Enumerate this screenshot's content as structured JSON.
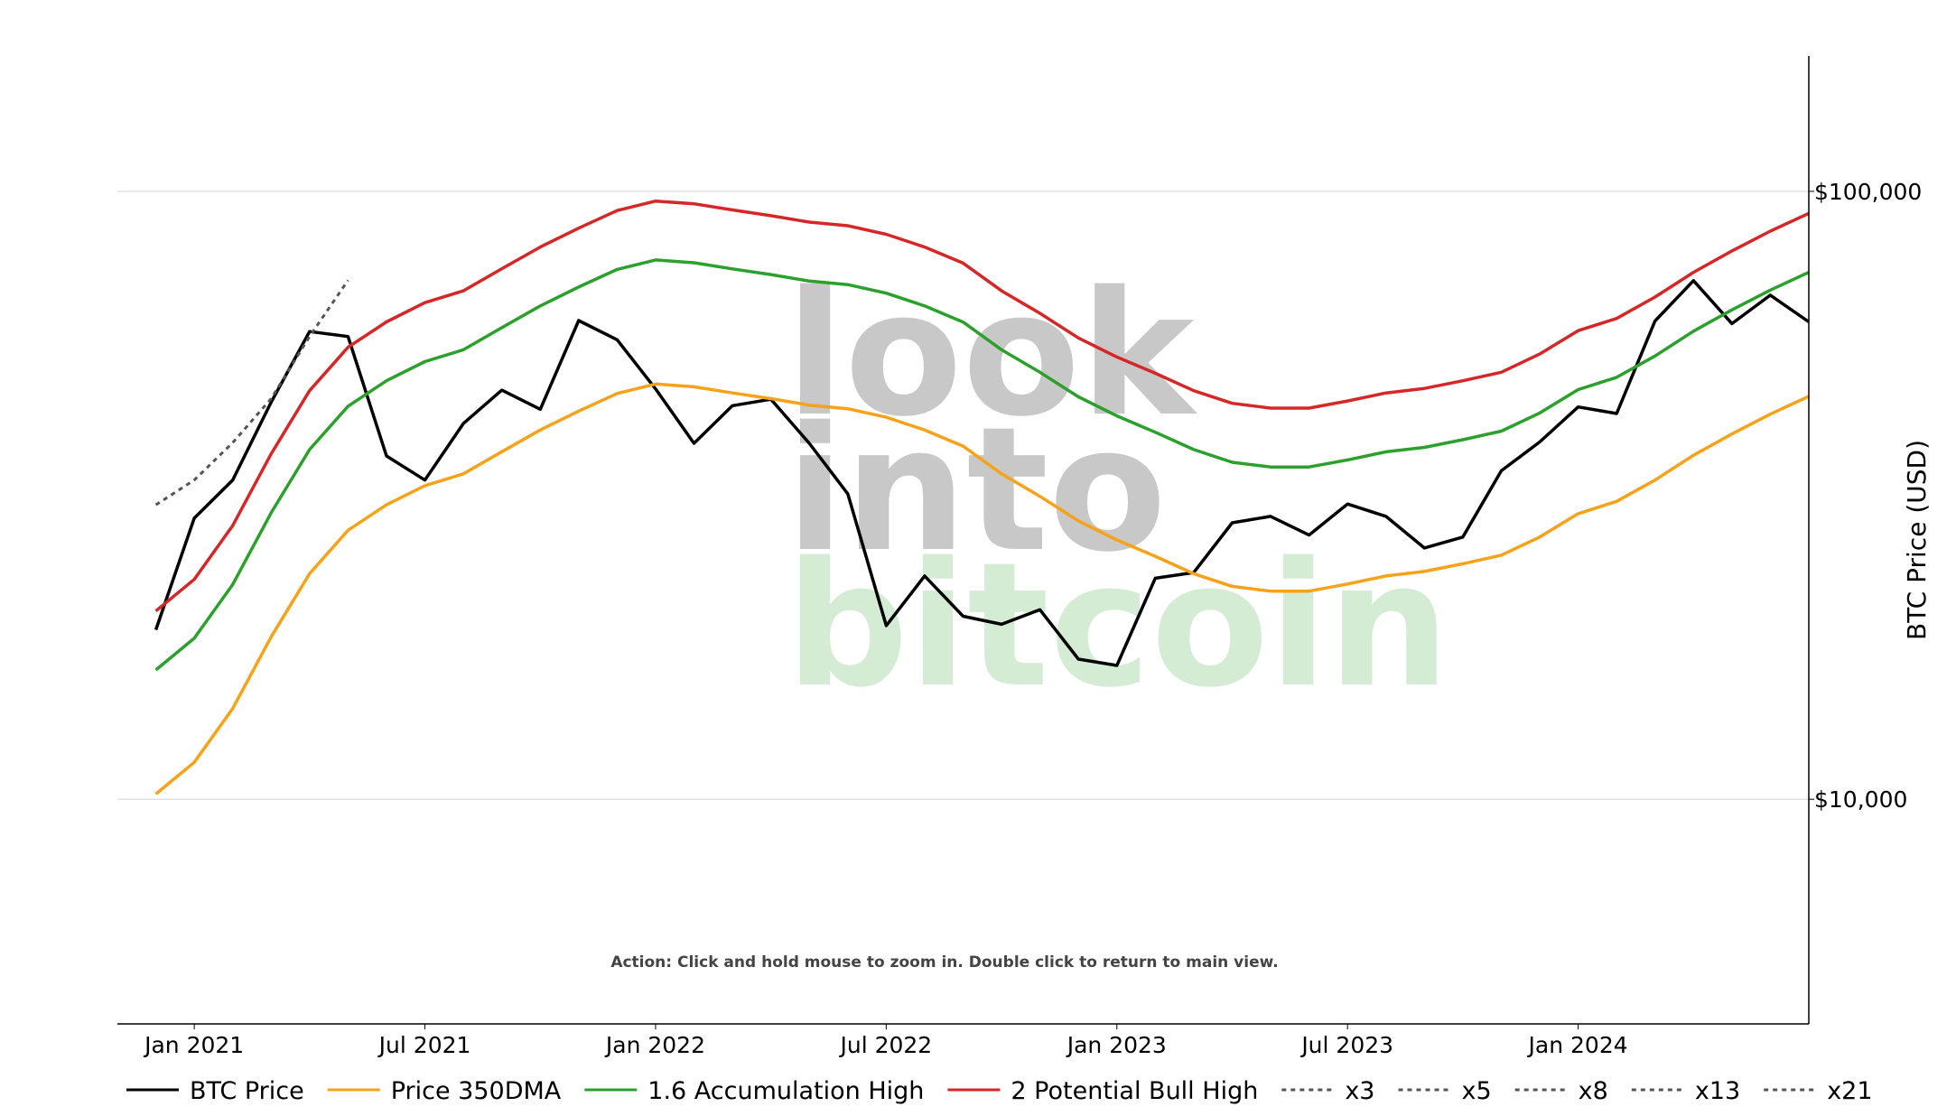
{
  "chart_data": {
    "type": "line",
    "y_label": "BTC Price (USD)",
    "annotation": "Action: Click and hold mouse to zoom in.  Double click to return to main view.",
    "watermark": [
      "look",
      "into",
      "bitcoin"
    ],
    "log_y": true,
    "grid": true,
    "legend": "bottom",
    "x": [
      "2020-12",
      "2021-01",
      "2021-02",
      "2021-03",
      "2021-04",
      "2021-05",
      "2021-06",
      "2021-07",
      "2021-08",
      "2021-09",
      "2021-10",
      "2021-11",
      "2021-12",
      "2022-01",
      "2022-02",
      "2022-03",
      "2022-04",
      "2022-05",
      "2022-06",
      "2022-07",
      "2022-08",
      "2022-09",
      "2022-10",
      "2022-11",
      "2022-12",
      "2023-01",
      "2023-02",
      "2023-03",
      "2023-04",
      "2023-05",
      "2023-06",
      "2023-07",
      "2023-08",
      "2023-09",
      "2023-10",
      "2023-11",
      "2023-12",
      "2024-01",
      "2024-02",
      "2024-03",
      "2024-04",
      "2024-05",
      "2024-06",
      "2024-07"
    ],
    "xlim": [
      "2020-11",
      "2024-07"
    ],
    "xticks": [
      {
        "value": "2021-01",
        "label": "Jan 2021"
      },
      {
        "value": "2021-07",
        "label": "Jul 2021"
      },
      {
        "value": "2022-01",
        "label": "Jan 2022"
      },
      {
        "value": "2022-07",
        "label": "Jul 2022"
      },
      {
        "value": "2023-01",
        "label": "Jan 2023"
      },
      {
        "value": "2023-07",
        "label": "Jul 2023"
      },
      {
        "value": "2024-01",
        "label": "Jan 2024"
      }
    ],
    "ylim": [
      4270,
      167000
    ],
    "yticks": [
      {
        "value": 10000,
        "label": "$10,000"
      },
      {
        "value": 100000,
        "label": "$100,000"
      }
    ],
    "series": [
      {
        "name": "BTC Price",
        "color": "#000000",
        "dash": false,
        "values": [
          19000,
          29000,
          33500,
          45000,
          58800,
          57700,
          36700,
          33500,
          41500,
          47100,
          43800,
          61300,
          57000,
          47300,
          38500,
          44400,
          45500,
          38500,
          31800,
          19300,
          23300,
          20000,
          19400,
          20500,
          17000,
          16600,
          23100,
          23600,
          28500,
          29200,
          27200,
          30600,
          29200,
          25900,
          27000,
          34700,
          38700,
          44200,
          43100,
          61200,
          71300,
          60600,
          67500,
          61000
        ]
      },
      {
        "name": "Price 350DMA",
        "color": "#f7a21b",
        "dash": false,
        "values": [
          10200,
          11500,
          14100,
          18500,
          23500,
          27700,
          30500,
          32800,
          34300,
          37300,
          40500,
          43500,
          46500,
          48200,
          47700,
          46600,
          45600,
          44500,
          43900,
          42500,
          40500,
          38100,
          34300,
          31500,
          28700,
          26700,
          25100,
          23500,
          22400,
          22000,
          22000,
          22600,
          23300,
          23700,
          24400,
          25200,
          27000,
          29500,
          30900,
          33500,
          36800,
          39900,
          43000,
          46000
        ]
      },
      {
        "name": "1.6 Accumulation High",
        "color": "#2ca02c",
        "dash": false,
        "values": [
          16320,
          18400,
          22560,
          29600,
          37600,
          44320,
          48800,
          52480,
          54880,
          59680,
          64800,
          69600,
          74400,
          77120,
          76320,
          74560,
          72960,
          71200,
          70240,
          68000,
          64800,
          60960,
          54880,
          50400,
          45920,
          42720,
          40160,
          37600,
          35840,
          35200,
          35200,
          36160,
          37280,
          37920,
          39040,
          40320,
          43200,
          47200,
          49440,
          53600,
          58880,
          63840,
          68800,
          73600
        ]
      },
      {
        "name": "2 Potential Bull High",
        "color": "#d62728",
        "dash": false,
        "values": [
          20400,
          23000,
          28200,
          37000,
          47000,
          55400,
          61000,
          65600,
          68600,
          74600,
          81000,
          87000,
          93000,
          96400,
          95400,
          93200,
          91200,
          89000,
          87800,
          85000,
          81000,
          76200,
          68600,
          63000,
          57400,
          53400,
          50200,
          47000,
          44800,
          44000,
          44000,
          45200,
          46600,
          47400,
          48800,
          50400,
          54000,
          59000,
          61800,
          67000,
          73600,
          79800,
          86000,
          92000
        ]
      },
      {
        "name": "x3",
        "color": "#555555",
        "dash": true,
        "values": [
          30500,
          33500,
          38600,
          45600,
          57700,
          71400,
          null,
          null,
          null,
          null,
          null,
          null,
          null,
          null,
          null,
          null,
          null,
          null,
          null,
          null,
          null,
          null,
          null,
          null,
          null,
          null,
          null,
          null,
          null,
          null,
          null,
          null,
          null,
          null,
          null,
          null,
          null,
          null,
          null,
          null,
          null,
          null,
          null,
          null
        ]
      },
      {
        "name": "x5",
        "color": "#555555",
        "dash": true,
        "values": [
          null,
          null,
          null,
          null,
          null,
          null,
          null,
          null,
          null,
          null,
          null,
          null,
          null,
          null,
          null,
          null,
          null,
          null,
          null,
          null,
          null,
          null,
          null,
          null,
          null,
          null,
          null,
          null,
          null,
          null,
          null,
          null,
          null,
          null,
          null,
          null,
          null,
          null,
          null,
          null,
          null,
          null,
          null,
          null
        ]
      },
      {
        "name": "x8",
        "color": "#555555",
        "dash": true,
        "values": [
          null,
          null,
          null,
          null,
          null,
          null,
          null,
          null,
          null,
          null,
          null,
          null,
          null,
          null,
          null,
          null,
          null,
          null,
          null,
          null,
          null,
          null,
          null,
          null,
          null,
          null,
          null,
          null,
          null,
          null,
          null,
          null,
          null,
          null,
          null,
          null,
          null,
          null,
          null,
          null,
          null,
          null,
          null,
          null
        ]
      },
      {
        "name": "x13",
        "color": "#555555",
        "dash": true,
        "values": [
          null,
          null,
          null,
          null,
          null,
          null,
          null,
          null,
          null,
          null,
          null,
          null,
          null,
          null,
          null,
          null,
          null,
          null,
          null,
          null,
          null,
          null,
          null,
          null,
          null,
          null,
          null,
          null,
          null,
          null,
          null,
          null,
          null,
          null,
          null,
          null,
          null,
          null,
          null,
          null,
          null,
          null,
          null,
          null
        ]
      },
      {
        "name": "x21",
        "color": "#555555",
        "dash": true,
        "values": [
          null,
          null,
          null,
          null,
          null,
          null,
          null,
          null,
          null,
          null,
          null,
          null,
          null,
          null,
          null,
          null,
          null,
          null,
          null,
          null,
          null,
          null,
          null,
          null,
          null,
          null,
          null,
          null,
          null,
          null,
          null,
          null,
          null,
          null,
          null,
          null,
          null,
          null,
          null,
          null,
          null,
          null,
          null,
          null
        ]
      }
    ]
  }
}
